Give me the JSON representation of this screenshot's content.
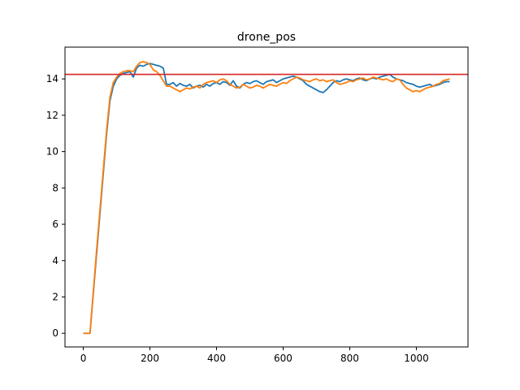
{
  "chart_data": {
    "type": "line",
    "title": "drone_pos",
    "xlabel": "",
    "ylabel": "",
    "xlim": [
      -55,
      1155
    ],
    "ylim": [
      -0.75,
      15.75
    ],
    "xticks": [
      0,
      200,
      400,
      600,
      800,
      1000
    ],
    "yticks": [
      0,
      2,
      4,
      6,
      8,
      10,
      12,
      14
    ],
    "grid": false,
    "legend": "none",
    "reference_line": {
      "y": 14.25,
      "color": "#d62728"
    },
    "series": [
      {
        "color": "#1f77b4",
        "x": [
          0,
          20,
          30,
          40,
          50,
          60,
          70,
          80,
          90,
          100,
          110,
          120,
          130,
          140,
          150,
          160,
          170,
          180,
          190,
          200,
          210,
          220,
          230,
          240,
          250,
          260,
          270,
          280,
          290,
          300,
          310,
          320,
          330,
          340,
          350,
          360,
          370,
          380,
          390,
          400,
          410,
          420,
          430,
          440,
          450,
          460,
          470,
          480,
          490,
          500,
          510,
          520,
          530,
          540,
          550,
          560,
          570,
          580,
          590,
          600,
          610,
          620,
          630,
          640,
          650,
          660,
          670,
          680,
          690,
          700,
          710,
          720,
          730,
          740,
          750,
          760,
          770,
          780,
          790,
          800,
          810,
          820,
          830,
          840,
          850,
          860,
          870,
          880,
          890,
          900,
          910,
          920,
          930,
          940,
          950,
          960,
          970,
          980,
          990,
          1000,
          1010,
          1020,
          1030,
          1040,
          1050,
          1060,
          1070,
          1080,
          1090,
          1100
        ],
        "y": [
          0,
          0,
          2.2,
          4.4,
          6.6,
          8.8,
          11.0,
          12.8,
          13.6,
          14.0,
          14.2,
          14.3,
          14.35,
          14.4,
          14.1,
          14.6,
          14.75,
          14.7,
          14.8,
          14.85,
          14.8,
          14.75,
          14.7,
          14.6,
          13.7,
          13.7,
          13.8,
          13.6,
          13.75,
          13.65,
          13.6,
          13.7,
          13.5,
          13.6,
          13.65,
          13.55,
          13.7,
          13.6,
          13.75,
          13.8,
          13.7,
          13.85,
          13.8,
          13.65,
          13.9,
          13.6,
          13.5,
          13.7,
          13.8,
          13.75,
          13.85,
          13.9,
          13.8,
          13.7,
          13.85,
          13.9,
          13.95,
          13.8,
          13.9,
          14.0,
          14.05,
          14.1,
          14.15,
          14.1,
          14.0,
          13.9,
          13.7,
          13.6,
          13.5,
          13.4,
          13.3,
          13.25,
          13.4,
          13.6,
          13.8,
          13.9,
          13.85,
          13.95,
          14.0,
          13.95,
          13.9,
          14.0,
          14.05,
          13.95,
          13.9,
          14.0,
          14.05,
          14.0,
          14.1,
          14.15,
          14.2,
          14.25,
          14.1,
          14.0,
          13.95,
          13.9,
          13.8,
          13.75,
          13.7,
          13.6,
          13.55,
          13.6,
          13.65,
          13.7,
          13.6,
          13.65,
          13.7,
          13.8,
          13.85,
          13.85
        ]
      },
      {
        "color": "#ff7f0e",
        "x": [
          0,
          20,
          30,
          40,
          50,
          60,
          70,
          80,
          90,
          100,
          110,
          120,
          130,
          140,
          150,
          160,
          170,
          180,
          190,
          200,
          210,
          220,
          230,
          240,
          250,
          260,
          270,
          280,
          290,
          300,
          310,
          320,
          330,
          340,
          350,
          360,
          370,
          380,
          390,
          400,
          410,
          420,
          430,
          440,
          450,
          460,
          470,
          480,
          490,
          500,
          510,
          520,
          530,
          540,
          550,
          560,
          570,
          580,
          590,
          600,
          610,
          620,
          630,
          640,
          650,
          660,
          670,
          680,
          690,
          700,
          710,
          720,
          730,
          740,
          750,
          760,
          770,
          780,
          790,
          800,
          810,
          820,
          830,
          840,
          850,
          860,
          870,
          880,
          890,
          900,
          910,
          920,
          930,
          940,
          950,
          960,
          970,
          980,
          990,
          1000,
          1010,
          1020,
          1030,
          1040,
          1050,
          1060,
          1070,
          1080,
          1090,
          1100
        ],
        "y": [
          0,
          0,
          2.3,
          4.6,
          6.8,
          9.0,
          11.2,
          13.0,
          13.8,
          14.1,
          14.3,
          14.4,
          14.45,
          14.45,
          14.4,
          14.7,
          14.9,
          14.95,
          14.9,
          14.8,
          14.5,
          14.4,
          14.2,
          13.9,
          13.6,
          13.6,
          13.5,
          13.4,
          13.3,
          13.4,
          13.5,
          13.45,
          13.55,
          13.6,
          13.5,
          13.7,
          13.8,
          13.85,
          13.9,
          13.8,
          13.95,
          14.0,
          13.9,
          13.7,
          13.6,
          13.5,
          13.55,
          13.7,
          13.6,
          13.5,
          13.55,
          13.65,
          13.6,
          13.5,
          13.6,
          13.7,
          13.65,
          13.6,
          13.7,
          13.8,
          13.75,
          13.9,
          14.0,
          14.1,
          14.05,
          13.95,
          13.9,
          13.85,
          13.95,
          14.0,
          13.9,
          13.95,
          13.85,
          13.9,
          13.95,
          13.8,
          13.7,
          13.75,
          13.8,
          13.9,
          13.85,
          13.95,
          14.0,
          14.05,
          13.95,
          14.0,
          14.1,
          14.05,
          14.0,
          13.95,
          14.0,
          13.9,
          13.85,
          14.0,
          13.95,
          13.7,
          13.5,
          13.4,
          13.3,
          13.35,
          13.3,
          13.4,
          13.5,
          13.55,
          13.6,
          13.7,
          13.75,
          13.9,
          13.95,
          14.0
        ]
      }
    ]
  }
}
